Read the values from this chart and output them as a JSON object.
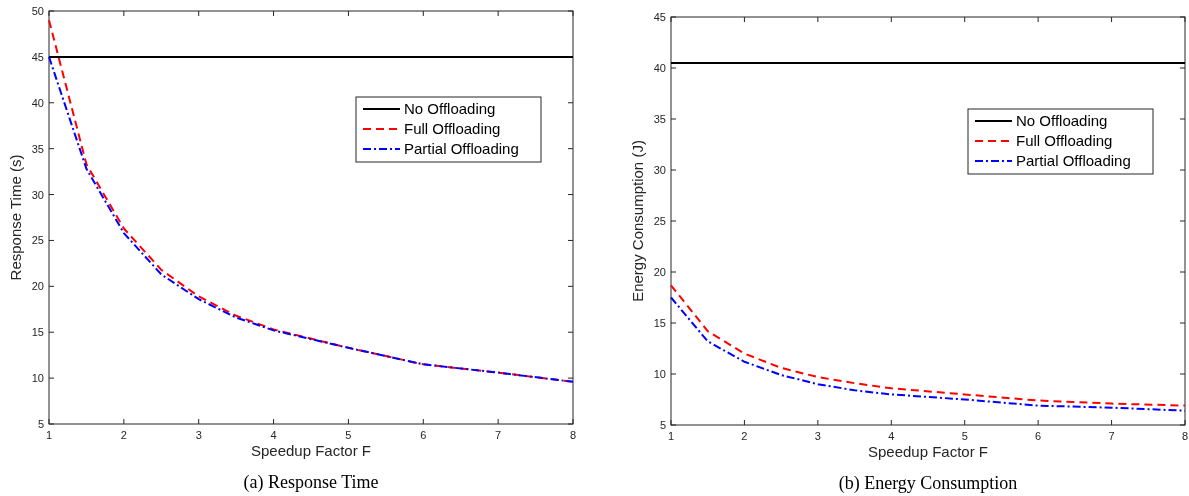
{
  "chart_data": [
    {
      "type": "line",
      "title": "(a)  Response Time",
      "xlabel": "Speedup Factor F",
      "ylabel": "Response Time (s)",
      "xlim": [
        1,
        8
      ],
      "xticks": [
        1,
        2,
        3,
        4,
        5,
        6,
        7,
        8
      ],
      "ylim": [
        5,
        50
      ],
      "yticks": [
        5,
        10,
        15,
        20,
        25,
        30,
        35,
        40,
        45,
        50
      ],
      "grid": false,
      "legend": "top right",
      "marker": "none",
      "series": [
        {
          "name": "No Offloading",
          "color": "#000000",
          "line_style": "solid",
          "x": [
            1,
            8
          ],
          "values": [
            45,
            45
          ]
        },
        {
          "name": "Full Offloading",
          "color": "#ff0000",
          "line_style": "dashed",
          "x": [
            1,
            1.5,
            2,
            2.5,
            3,
            3.5,
            4,
            5,
            6,
            7,
            8
          ],
          "values": [
            49,
            33.3,
            26.3,
            21.8,
            18.9,
            16.8,
            15.3,
            13.3,
            11.5,
            10.6,
            9.6
          ]
        },
        {
          "name": "Partial Offloading",
          "color": "#0000ff",
          "line_style": "dashdot",
          "x": [
            1,
            1.5,
            2,
            2.5,
            3,
            3.5,
            4,
            5,
            6,
            7,
            8
          ],
          "values": [
            45,
            32.8,
            25.8,
            21.3,
            18.6,
            16.6,
            15.2,
            13.3,
            11.5,
            10.6,
            9.6
          ]
        }
      ]
    },
    {
      "type": "line",
      "title": "(b)  Energy Consumption",
      "xlabel": "Speedup Factor F",
      "ylabel": "Energy Consumption (J)",
      "xlim": [
        1,
        8
      ],
      "xticks": [
        1,
        2,
        3,
        4,
        5,
        6,
        7,
        8
      ],
      "ylim": [
        5,
        45
      ],
      "yticks": [
        5,
        10,
        15,
        20,
        25,
        30,
        35,
        40,
        45
      ],
      "grid": false,
      "legend": "top right",
      "marker": "none",
      "series": [
        {
          "name": "No Offloading",
          "color": "#000000",
          "line_style": "solid",
          "x": [
            1,
            8
          ],
          "values": [
            40.5,
            40.5
          ]
        },
        {
          "name": "Full Offloading",
          "color": "#ff0000",
          "line_style": "dashed",
          "x": [
            1,
            1.5,
            2,
            2.5,
            3,
            3.5,
            4,
            5,
            6,
            7,
            8
          ],
          "values": [
            18.7,
            14.2,
            12.0,
            10.6,
            9.7,
            9.1,
            8.6,
            8.0,
            7.4,
            7.1,
            6.9
          ]
        },
        {
          "name": "Partial Offloading",
          "color": "#0000ff",
          "line_style": "dashdot",
          "x": [
            1,
            1.5,
            2,
            2.5,
            3,
            3.5,
            4,
            5,
            6,
            7,
            8
          ],
          "values": [
            17.5,
            13.2,
            11.2,
            9.9,
            9.0,
            8.4,
            8.0,
            7.5,
            6.9,
            6.7,
            6.4
          ]
        }
      ]
    }
  ]
}
